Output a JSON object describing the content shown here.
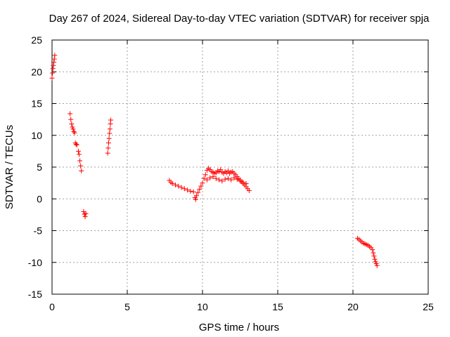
{
  "chart_data": {
    "type": "scatter",
    "title": "Day 267 of 2024, Sidereal Day-to-day VTEC variation (SDTVAR) for receiver spja",
    "xlabel": "GPS time / hours",
    "ylabel": "SDTVAR / TECUs",
    "xlim": [
      0,
      25
    ],
    "ylim": [
      -15,
      25
    ],
    "xticks": [
      0,
      5,
      10,
      15,
      20,
      25
    ],
    "yticks": [
      -15,
      -10,
      -5,
      0,
      5,
      10,
      15,
      20,
      25
    ],
    "grid": true,
    "marker": "+",
    "series": [
      {
        "name": "SDTVAR",
        "color": "#ff0000",
        "x": [
          0.0,
          0.03,
          0.06,
          0.09,
          0.12,
          0.15,
          0.18,
          1.2,
          1.25,
          1.3,
          1.35,
          1.4,
          1.45,
          1.5,
          1.55,
          1.6,
          1.65,
          1.75,
          1.8,
          1.85,
          1.9,
          1.95,
          2.1,
          2.15,
          2.2,
          2.25,
          3.7,
          3.73,
          3.76,
          3.79,
          3.82,
          3.85,
          3.88,
          3.9,
          7.8,
          7.9,
          8.0,
          8.2,
          8.4,
          8.6,
          8.8,
          9.0,
          9.2,
          9.4,
          9.5,
          9.55,
          9.6,
          9.7,
          9.8,
          9.9,
          10.0,
          10.1,
          10.2,
          10.3,
          10.4,
          10.5,
          10.6,
          10.7,
          10.8,
          10.9,
          11.0,
          11.1,
          11.2,
          11.3,
          11.4,
          11.5,
          11.6,
          11.7,
          11.8,
          11.9,
          12.0,
          12.1,
          12.2,
          12.3,
          12.4,
          12.5,
          12.6,
          12.7,
          12.8,
          12.9,
          13.0,
          13.1,
          10.3,
          10.5,
          10.7,
          10.9,
          11.1,
          11.3,
          11.5,
          11.7,
          11.9,
          12.1,
          12.3,
          12.5,
          12.7,
          12.9,
          20.3,
          20.4,
          20.5,
          20.6,
          20.7,
          20.8,
          20.9,
          21.0,
          21.1,
          21.2,
          21.3,
          21.35,
          21.4,
          21.45,
          21.5,
          21.55,
          21.6
        ],
        "y": [
          19.0,
          19.8,
          20.5,
          21.0,
          21.5,
          22.0,
          22.6,
          13.4,
          12.5,
          11.8,
          11.3,
          11.0,
          10.6,
          10.4,
          8.8,
          8.6,
          8.5,
          7.5,
          7.0,
          6.0,
          5.2,
          4.4,
          -2.0,
          -2.4,
          -2.8,
          -2.3,
          7.2,
          8.0,
          8.8,
          9.5,
          10.3,
          11.0,
          11.8,
          12.4,
          2.9,
          2.6,
          2.4,
          2.2,
          2.0,
          1.8,
          1.6,
          1.4,
          1.2,
          1.1,
          0.2,
          -0.1,
          0.5,
          1.0,
          1.5,
          2.0,
          2.5,
          3.2,
          3.8,
          4.5,
          4.8,
          4.6,
          4.3,
          4.2,
          4.0,
          4.1,
          4.4,
          4.3,
          4.6,
          4.2,
          4.0,
          4.3,
          4.1,
          4.4,
          4.0,
          4.2,
          4.3,
          4.0,
          3.8,
          3.5,
          3.2,
          3.0,
          2.7,
          2.4,
          2.2,
          1.9,
          1.6,
          1.3,
          3.0,
          3.3,
          3.5,
          3.2,
          3.0,
          2.8,
          3.1,
          3.2,
          3.0,
          3.3,
          3.1,
          2.8,
          2.6,
          2.4,
          -6.2,
          -6.4,
          -6.6,
          -6.8,
          -7.0,
          -7.1,
          -7.2,
          -7.3,
          -7.5,
          -7.7,
          -8.0,
          -8.5,
          -9.0,
          -9.5,
          -9.9,
          -10.2,
          -10.5
        ]
      }
    ]
  }
}
